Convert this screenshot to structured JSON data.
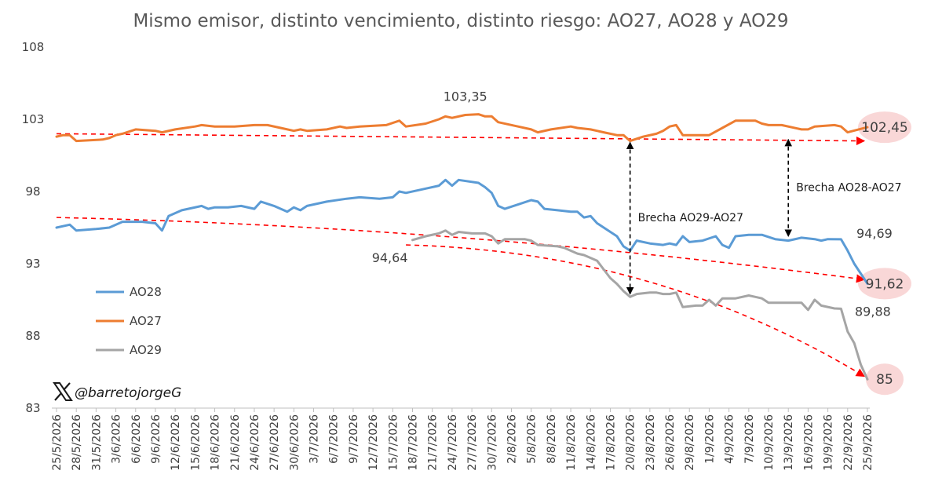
{
  "chart_data": {
    "type": "line",
    "title": "Mismo emisor, distinto vencimiento, distinto riesgo: AO27, AO28 y AO29",
    "ylim": [
      83,
      108
    ],
    "yticks": [
      83,
      88,
      93,
      98,
      103,
      108
    ],
    "xlabels": [
      "25/5/2026",
      "28/5/2026",
      "31/5/2026",
      "3/6/2026",
      "6/6/2026",
      "9/6/2026",
      "12/6/2026",
      "15/6/2026",
      "18/6/2026",
      "21/6/2026",
      "24/6/2026",
      "27/6/2026",
      "30/6/2026",
      "3/7/2026",
      "6/7/2026",
      "9/7/2026",
      "12/7/2026",
      "15/7/2026",
      "18/7/2026",
      "21/7/2026",
      "24/7/2026",
      "27/7/2026",
      "30/7/2026",
      "2/8/2026",
      "5/8/2026",
      "8/8/2026",
      "11/8/2026",
      "14/8/2026",
      "17/8/2026",
      "20/8/2026",
      "23/8/2026",
      "26/8/2026",
      "29/8/2026",
      "1/9/2026",
      "4/9/2026",
      "7/9/2026",
      "10/9/2026",
      "13/9/2026",
      "16/9/2026",
      "19/9/2026",
      "22/9/2026",
      "25/9/2026"
    ],
    "grid": false,
    "legend_position": "left",
    "series": [
      {
        "name": "AO28",
        "color": "#5b9bd5",
        "points": [
          [
            "25/5/2026",
            95.5
          ],
          [
            "27/5/2026",
            95.7
          ],
          [
            "28/5/2026",
            95.3
          ],
          [
            "31/5/2026",
            95.4
          ],
          [
            "2/6/2026",
            95.5
          ],
          [
            "4/6/2026",
            95.9
          ],
          [
            "7/6/2026",
            95.9
          ],
          [
            "9/6/2026",
            95.8
          ],
          [
            "10/6/2026",
            95.3
          ],
          [
            "11/6/2026",
            96.3
          ],
          [
            "13/6/2026",
            96.7
          ],
          [
            "16/6/2026",
            97.0
          ],
          [
            "17/6/2026",
            96.8
          ],
          [
            "18/6/2026",
            96.9
          ],
          [
            "20/6/2026",
            96.9
          ],
          [
            "22/6/2026",
            97.0
          ],
          [
            "24/6/2026",
            96.8
          ],
          [
            "25/6/2026",
            97.3
          ],
          [
            "27/6/2026",
            97.0
          ],
          [
            "29/6/2026",
            96.6
          ],
          [
            "30/6/2026",
            96.9
          ],
          [
            "1/7/2026",
            96.7
          ],
          [
            "2/7/2026",
            97.0
          ],
          [
            "5/7/2026",
            97.3
          ],
          [
            "8/7/2026",
            97.5
          ],
          [
            "10/7/2026",
            97.6
          ],
          [
            "13/7/2026",
            97.5
          ],
          [
            "15/7/2026",
            97.6
          ],
          [
            "16/7/2026",
            98.0
          ],
          [
            "17/7/2026",
            97.9
          ],
          [
            "20/7/2026",
            98.2
          ],
          [
            "22/7/2026",
            98.4
          ],
          [
            "23/7/2026",
            98.8
          ],
          [
            "24/7/2026",
            98.4
          ],
          [
            "25/7/2026",
            98.8
          ],
          [
            "28/7/2026",
            98.6
          ],
          [
            "29/7/2026",
            98.3
          ],
          [
            "30/7/2026",
            97.9
          ],
          [
            "31/7/2026",
            97.0
          ],
          [
            "1/8/2026",
            96.8
          ],
          [
            "3/8/2026",
            97.1
          ],
          [
            "5/8/2026",
            97.4
          ],
          [
            "6/8/2026",
            97.3
          ],
          [
            "7/8/2026",
            96.8
          ],
          [
            "9/8/2026",
            96.7
          ],
          [
            "11/8/2026",
            96.6
          ],
          [
            "12/8/2026",
            96.6
          ],
          [
            "13/8/2026",
            96.2
          ],
          [
            "14/8/2026",
            96.3
          ],
          [
            "15/8/2026",
            95.8
          ],
          [
            "17/8/2026",
            95.2
          ],
          [
            "18/8/2026",
            94.9
          ],
          [
            "19/8/2026",
            94.2
          ],
          [
            "20/8/2026",
            93.9
          ],
          [
            "21/8/2026",
            94.6
          ],
          [
            "23/8/2026",
            94.4
          ],
          [
            "25/8/2026",
            94.3
          ],
          [
            "26/8/2026",
            94.4
          ],
          [
            "27/8/2026",
            94.3
          ],
          [
            "28/8/2026",
            94.9
          ],
          [
            "29/8/2026",
            94.5
          ],
          [
            "31/8/2026",
            94.6
          ],
          [
            "2/9/2026",
            94.9
          ],
          [
            "3/9/2026",
            94.3
          ],
          [
            "4/9/2026",
            94.1
          ],
          [
            "5/9/2026",
            94.9
          ],
          [
            "7/9/2026",
            95.0
          ],
          [
            "9/9/2026",
            95.0
          ],
          [
            "11/9/2026",
            94.7
          ],
          [
            "13/9/2026",
            94.6
          ],
          [
            "15/9/2026",
            94.8
          ],
          [
            "17/9/2026",
            94.7
          ],
          [
            "18/9/2026",
            94.6
          ],
          [
            "19/9/2026",
            94.7
          ],
          [
            "21/9/2026",
            94.69
          ],
          [
            "22/9/2026",
            93.9
          ],
          [
            "23/9/2026",
            93.0
          ],
          [
            "25/9/2026",
            91.62
          ]
        ]
      },
      {
        "name": "AO27",
        "color": "#ed7d31",
        "points": [
          [
            "25/5/2026",
            101.8
          ],
          [
            "26/5/2026",
            101.9
          ],
          [
            "27/5/2026",
            101.9
          ],
          [
            "28/5/2026",
            101.5
          ],
          [
            "1/6/2026",
            101.6
          ],
          [
            "2/6/2026",
            101.7
          ],
          [
            "3/6/2026",
            101.9
          ],
          [
            "4/6/2026",
            102.0
          ],
          [
            "6/6/2026",
            102.3
          ],
          [
            "9/6/2026",
            102.2
          ],
          [
            "10/6/2026",
            102.1
          ],
          [
            "12/6/2026",
            102.3
          ],
          [
            "15/6/2026",
            102.5
          ],
          [
            "16/6/2026",
            102.6
          ],
          [
            "18/6/2026",
            102.5
          ],
          [
            "21/6/2026",
            102.5
          ],
          [
            "24/6/2026",
            102.6
          ],
          [
            "26/6/2026",
            102.6
          ],
          [
            "28/6/2026",
            102.4
          ],
          [
            "30/6/2026",
            102.2
          ],
          [
            "1/7/2026",
            102.3
          ],
          [
            "2/7/2026",
            102.2
          ],
          [
            "5/7/2026",
            102.3
          ],
          [
            "7/7/2026",
            102.5
          ],
          [
            "8/7/2026",
            102.4
          ],
          [
            "10/7/2026",
            102.5
          ],
          [
            "14/7/2026",
            102.6
          ],
          [
            "16/7/2026",
            102.9
          ],
          [
            "17/7/2026",
            102.5
          ],
          [
            "20/7/2026",
            102.7
          ],
          [
            "22/7/2026",
            103.0
          ],
          [
            "23/7/2026",
            103.2
          ],
          [
            "24/7/2026",
            103.1
          ],
          [
            "26/7/2026",
            103.3
          ],
          [
            "28/7/2026",
            103.35
          ],
          [
            "29/7/2026",
            103.2
          ],
          [
            "30/7/2026",
            103.2
          ],
          [
            "31/7/2026",
            102.8
          ],
          [
            "3/8/2026",
            102.5
          ],
          [
            "5/8/2026",
            102.3
          ],
          [
            "6/8/2026",
            102.1
          ],
          [
            "8/8/2026",
            102.3
          ],
          [
            "11/8/2026",
            102.5
          ],
          [
            "12/8/2026",
            102.4
          ],
          [
            "14/8/2026",
            102.3
          ],
          [
            "16/8/2026",
            102.1
          ],
          [
            "18/8/2026",
            101.9
          ],
          [
            "19/8/2026",
            101.9
          ],
          [
            "20/8/2026",
            101.5
          ],
          [
            "22/8/2026",
            101.8
          ],
          [
            "24/8/2026",
            102.0
          ],
          [
            "25/8/2026",
            102.2
          ],
          [
            "26/8/2026",
            102.5
          ],
          [
            "27/8/2026",
            102.6
          ],
          [
            "28/8/2026",
            101.9
          ],
          [
            "31/8/2026",
            101.9
          ],
          [
            "1/9/2026",
            101.9
          ],
          [
            "3/9/2026",
            102.4
          ],
          [
            "5/9/2026",
            102.9
          ],
          [
            "8/9/2026",
            102.9
          ],
          [
            "9/9/2026",
            102.7
          ],
          [
            "10/9/2026",
            102.6
          ],
          [
            "12/9/2026",
            102.6
          ],
          [
            "15/9/2026",
            102.3
          ],
          [
            "16/9/2026",
            102.3
          ],
          [
            "17/9/2026",
            102.5
          ],
          [
            "20/9/2026",
            102.6
          ],
          [
            "21/9/2026",
            102.5
          ],
          [
            "22/9/2026",
            102.1
          ],
          [
            "25/9/2026",
            102.45
          ]
        ]
      },
      {
        "name": "AO29",
        "color": "#a5a5a5",
        "points": [
          [
            "18/7/2026",
            94.64
          ],
          [
            "20/7/2026",
            94.9
          ],
          [
            "22/7/2026",
            95.1
          ],
          [
            "23/7/2026",
            95.3
          ],
          [
            "24/7/2026",
            95.0
          ],
          [
            "25/7/2026",
            95.2
          ],
          [
            "27/7/2026",
            95.1
          ],
          [
            "29/7/2026",
            95.1
          ],
          [
            "30/7/2026",
            94.9
          ],
          [
            "31/7/2026",
            94.4
          ],
          [
            "1/8/2026",
            94.7
          ],
          [
            "4/8/2026",
            94.7
          ],
          [
            "5/8/2026",
            94.6
          ],
          [
            "6/8/2026",
            94.3
          ],
          [
            "9/8/2026",
            94.2
          ],
          [
            "10/8/2026",
            94.1
          ],
          [
            "12/8/2026",
            93.7
          ],
          [
            "13/8/2026",
            93.6
          ],
          [
            "15/8/2026",
            93.2
          ],
          [
            "16/8/2026",
            92.6
          ],
          [
            "17/8/2026",
            92.0
          ],
          [
            "18/8/2026",
            91.6
          ],
          [
            "19/8/2026",
            91.1
          ],
          [
            "20/8/2026",
            90.7
          ],
          [
            "21/8/2026",
            90.9
          ],
          [
            "23/8/2026",
            91.0
          ],
          [
            "24/8/2026",
            91.0
          ],
          [
            "25/8/2026",
            90.9
          ],
          [
            "26/8/2026",
            90.9
          ],
          [
            "27/8/2026",
            91.0
          ],
          [
            "28/8/2026",
            90.0
          ],
          [
            "30/8/2026",
            90.1
          ],
          [
            "31/8/2026",
            90.1
          ],
          [
            "1/9/2026",
            90.5
          ],
          [
            "2/9/2026",
            90.1
          ],
          [
            "3/9/2026",
            90.6
          ],
          [
            "5/9/2026",
            90.6
          ],
          [
            "7/9/2026",
            90.8
          ],
          [
            "8/9/2026",
            90.7
          ],
          [
            "9/9/2026",
            90.6
          ],
          [
            "10/9/2026",
            90.3
          ],
          [
            "13/9/2026",
            90.3
          ],
          [
            "15/9/2026",
            90.3
          ],
          [
            "16/9/2026",
            89.8
          ],
          [
            "17/9/2026",
            90.5
          ],
          [
            "18/9/2026",
            90.1
          ],
          [
            "20/9/2026",
            89.9
          ],
          [
            "21/9/2026",
            89.88
          ],
          [
            "22/9/2026",
            88.3
          ],
          [
            "23/9/2026",
            87.5
          ],
          [
            "24/9/2026",
            86.0
          ],
          [
            "25/9/2026",
            85.0
          ]
        ]
      }
    ],
    "trendlines": [
      {
        "from": [
          "25/5/2026",
          102.0
        ],
        "to": [
          "25/9/2026",
          101.5
        ],
        "color": "#ff0000"
      },
      {
        "from": [
          "25/5/2026",
          96.2
        ],
        "to": [
          "25/9/2026",
          91.9
        ],
        "color": "#ff0000"
      },
      {
        "from": [
          "17/7/2026",
          94.3
        ],
        "to": [
          "25/9/2026",
          85.2
        ],
        "color": "#ff0000"
      }
    ],
    "annotations": [
      {
        "text": "103,35",
        "x": "26/7/2026",
        "y": 103.35
      },
      {
        "text": "94,64",
        "x": "18/7/2026",
        "y": 94.64
      },
      {
        "text": "94,69",
        "x": "25/9/2026",
        "y": 94.69
      },
      {
        "text": "89,88",
        "x": "25/9/2026",
        "y": 89.88
      }
    ],
    "highlighted_labels": [
      {
        "text": "102,45",
        "y": 102.45
      },
      {
        "text": "91,62",
        "y": 91.62
      },
      {
        "text": "85",
        "y": 85
      }
    ],
    "gaps": [
      {
        "label": "Brecha AO29-AO27",
        "x": "20/8/2026",
        "y_top": 101.4,
        "y_bottom": 90.9
      },
      {
        "label": "Brecha AO28-AO27",
        "x": "13/9/2026",
        "y_top": 101.6,
        "y_bottom": 94.9
      }
    ]
  },
  "watermark": {
    "handle": "@barretojorgeG",
    "icon": "x-logo-icon"
  }
}
